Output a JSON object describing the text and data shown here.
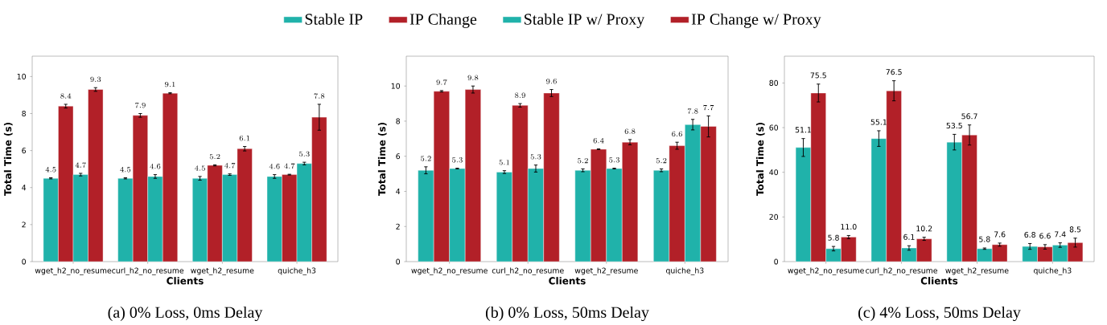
{
  "chart_data": [
    {
      "type": "bar",
      "categories": [
        "wget_h2_no_resume",
        "curl_h2_no_resume",
        "wget_h2_resume",
        "quiche_h3"
      ],
      "xlabel": "Clients",
      "ylabel": "Total Time (s)",
      "ylim": [
        0,
        11.1
      ],
      "yticks": [
        0,
        2,
        4,
        6,
        8,
        10
      ],
      "data_labels": true,
      "legend": "top",
      "annotations": [
        "(a) 0% Loss, 0ms Delay"
      ],
      "series": [
        {
          "name": "Stable IP",
          "color": "#20b2aa",
          "values": [
            4.5,
            4.5,
            4.5,
            4.6
          ],
          "errors": [
            0.03,
            0.03,
            0.1,
            0.1
          ]
        },
        {
          "name": "IP Change",
          "color": "#b22028",
          "values": [
            8.4,
            7.9,
            5.2,
            4.7
          ],
          "errors": [
            0.1,
            0.1,
            0.03,
            0.02
          ]
        },
        {
          "name": "Stable IP w/ Proxy",
          "color": "#20b2aa",
          "values": [
            4.7,
            4.6,
            4.7,
            5.3
          ],
          "errors": [
            0.07,
            0.1,
            0.04,
            0.07
          ]
        },
        {
          "name": "IP Change w/ Proxy",
          "color": "#b22028",
          "values": [
            9.3,
            9.1,
            6.1,
            7.8
          ],
          "errors": [
            0.1,
            0.03,
            0.12,
            0.7
          ]
        }
      ]
    },
    {
      "type": "bar",
      "categories": [
        "wget_h2_no_resume",
        "curl_h2_no_resume",
        "wget_h2_resume",
        "quiche_h3"
      ],
      "xlabel": "Clients",
      "ylabel": "Total Time (s)",
      "ylim": [
        0,
        11.7
      ],
      "yticks": [
        0,
        2,
        4,
        6,
        8,
        10
      ],
      "data_labels": true,
      "annotations": [
        "(b) 0% Loss, 50ms Delay"
      ],
      "series": [
        {
          "color": "#20b2aa",
          "values": [
            5.2,
            5.1,
            5.2,
            5.2
          ],
          "errors": [
            0.2,
            0.08,
            0.08,
            0.08
          ]
        },
        {
          "color": "#b22028",
          "values": [
            9.7,
            8.9,
            6.4,
            6.6
          ],
          "errors": [
            0.04,
            0.1,
            0.02,
            0.2
          ]
        },
        {
          "color": "#20b2aa",
          "values": [
            5.3,
            5.3,
            5.3,
            7.8
          ],
          "errors": [
            0.02,
            0.2,
            0.02,
            0.3
          ]
        },
        {
          "color": "#b22028",
          "values": [
            9.8,
            9.6,
            6.8,
            7.7
          ],
          "errors": [
            0.2,
            0.2,
            0.15,
            0.6
          ]
        }
      ]
    },
    {
      "type": "bar",
      "categories": [
        "wget_h2_no_resume",
        "curl_h2_no_resume",
        "wget_h2_resume",
        "quiche_h3"
      ],
      "xlabel": "Clients",
      "ylabel": "Total Time (s)",
      "ylim": [
        0,
        92
      ],
      "yticks": [
        0,
        20,
        40,
        60,
        80
      ],
      "annotations": [
        "(c) 4% Loss, 50ms Delay"
      ],
      "series": [
        {
          "color": "#20b2aa",
          "values": [
            51.1,
            55.1,
            53.5,
            6.8
          ],
          "errors": [
            4,
            3.5,
            3.5,
            1.3
          ],
          "value_labels": [
            "51.1",
            "55.1",
            "53.5",
            "6.8"
          ]
        },
        {
          "color": "#b22028",
          "values": [
            75.5,
            76.5,
            56.7,
            6.6
          ],
          "errors": [
            4,
            4.5,
            4.5,
            1
          ],
          "value_labels": [
            "75.5",
            "76.5",
            "56.7",
            "6.6"
          ]
        },
        {
          "color": "#20b2aa",
          "values": [
            5.8,
            6.1,
            5.8,
            7.4
          ],
          "errors": [
            1,
            1,
            0.3,
            1
          ],
          "value_labels": [
            "5.8",
            "6.1",
            "5.8",
            "7.4"
          ]
        },
        {
          "color": "#b22028",
          "values": [
            11.0,
            10.2,
            7.6,
            8.5
          ],
          "errors": [
            0.7,
            0.7,
            0.7,
            2
          ],
          "value_labels": [
            "11.0",
            "10.2",
            "7.6",
            "8.5"
          ]
        }
      ]
    }
  ]
}
